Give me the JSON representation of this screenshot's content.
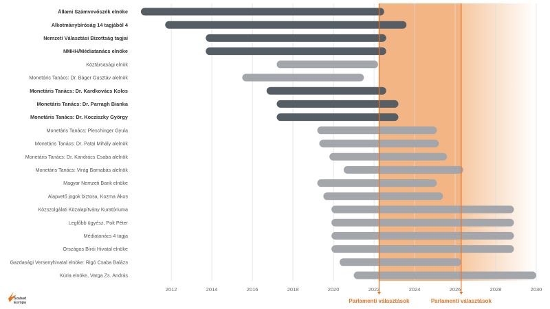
{
  "chart_data": {
    "type": "bar",
    "orientation": "horizontal-range",
    "xlim": [
      2010.3,
      2030
    ],
    "x_ticks": [
      2012,
      2014,
      2016,
      2018,
      2020,
      2022,
      2024,
      2026,
      2028,
      2030
    ],
    "grid": true,
    "colors": {
      "dark": "#555d65",
      "light": "#a3a7ab",
      "accent": "#e8711e",
      "highlight": "#f6c8a1"
    },
    "shaded_region": {
      "from": 2022.25,
      "to": 2030
    },
    "elections": [
      {
        "label": "Parlamenti választások",
        "x": 2022.25
      },
      {
        "label": "Parlamenti választások",
        "x": 2026.3
      }
    ],
    "bars": [
      {
        "label": "Állami Számvevőszék elnöke",
        "start": 2010.5,
        "end": 2022.5,
        "bold": true
      },
      {
        "label": "Alkotmánybíróság 14 tagjából 4",
        "start": 2011.7,
        "end": 2023.6,
        "bold": true
      },
      {
        "label": "Nemzeti Választási Bizottság tagjai",
        "start": 2013.7,
        "end": 2022.6,
        "bold": true
      },
      {
        "label": "NMHH/Médiatanács elnöke",
        "start": 2013.7,
        "end": 2022.6,
        "bold": true
      },
      {
        "label": "Köztársasági elnök",
        "start": 2017.2,
        "end": 2022.2,
        "bold": false
      },
      {
        "label": "Monetáris Tanács: Dr. Báger Gusztáv alelnök",
        "start": 2015.5,
        "end": 2021.5,
        "bold": false
      },
      {
        "label": "Monetáris Tanács: Dr. Kardkovács Kolos",
        "start": 2016.7,
        "end": 2022.6,
        "bold": true
      },
      {
        "label": "Monetáris Tanács: Dr. Parragh Bianka",
        "start": 2017.2,
        "end": 2023.2,
        "bold": true
      },
      {
        "label": "Monetáris Tanács: Dr. Kocziszky György",
        "start": 2017.2,
        "end": 2023.2,
        "bold": true
      },
      {
        "label": "Monetáris Tanács: Pleschinger Gyula",
        "start": 2019.2,
        "end": 2025.1,
        "bold": false
      },
      {
        "label": "Monetáris Tanács: Dr. Patai Mihály alelnök",
        "start": 2019.3,
        "end": 2025.2,
        "bold": false
      },
      {
        "label": "Monetáris Tanács: Dr. Kandrács Csaba alelnök",
        "start": 2019.8,
        "end": 2025.6,
        "bold": false
      },
      {
        "label": "Monetáris Tanács: Virág Barnabás alelnök",
        "start": 2020.5,
        "end": 2026.4,
        "bold": false
      },
      {
        "label": "Magyar Nemzeti Bank elnöke",
        "start": 2019.2,
        "end": 2025.1,
        "bold": false
      },
      {
        "label": "Alapvető jogok biztosa, Kozma Ákos",
        "start": 2019.5,
        "end": 2025.4,
        "bold": false
      },
      {
        "label": "Közszolgálati Közalapítvány Kuratóriuma",
        "start": 2019.9,
        "end": 2028.9,
        "bold": false
      },
      {
        "label": "Legfőbb ügyész, Polt Péter",
        "start": 2019.9,
        "end": 2028.9,
        "bold": false
      },
      {
        "label": "Médiatanács 4 tagja",
        "start": 2019.9,
        "end": 2028.9,
        "bold": false
      },
      {
        "label": "Országos Bírói Hivatal elnöke",
        "start": 2019.9,
        "end": 2028.9,
        "bold": false
      },
      {
        "label": "Gazdasági Versenyhivatal elnöke: Rigó Csaba Balázs",
        "start": 2020.3,
        "end": 2026.3,
        "bold": false
      },
      {
        "label": "Kúria elnöke, Varga Zs. András",
        "start": 2021.0,
        "end": 2030.0,
        "bold": false
      }
    ]
  },
  "logo": {
    "line1": "Szabad",
    "line2": "Európa"
  }
}
